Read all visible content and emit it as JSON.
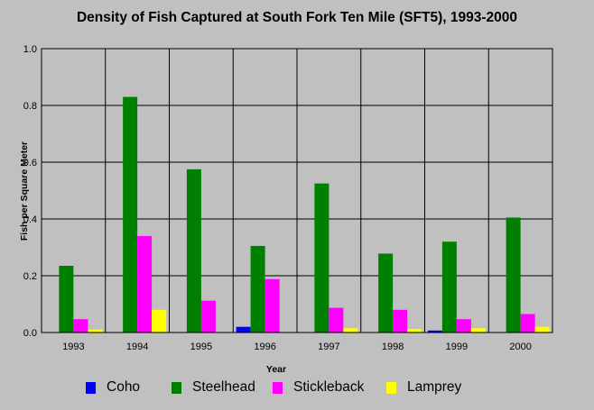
{
  "chart_data": {
    "type": "bar",
    "title": "Density of Fish Captured at South Fork Ten Mile (SFT5), 1993-2000",
    "xlabel": "Year",
    "ylabel": "Fish per Square Meter",
    "ylim": [
      0,
      1.0
    ],
    "yticks": [
      "0.0",
      "0.2",
      "0.4",
      "0.6",
      "0.8",
      "1.0"
    ],
    "grid": true,
    "legend_position": "bottom",
    "categories": [
      "1993",
      "1994",
      "1995",
      "1996",
      "1997",
      "1998",
      "1999",
      "2000"
    ],
    "series": [
      {
        "name": "Coho",
        "color": "#0000ff",
        "values": [
          0,
          0,
          0,
          0.02,
          0,
          0,
          0.007,
          0
        ]
      },
      {
        "name": "Steelhead",
        "color": "#008000",
        "values": [
          0.235,
          0.83,
          0.575,
          0.305,
          0.525,
          0.278,
          0.32,
          0.405
        ]
      },
      {
        "name": "Stickleback",
        "color": "#ff00ff",
        "values": [
          0.047,
          0.34,
          0.112,
          0.188,
          0.087,
          0.08,
          0.047,
          0.065
        ]
      },
      {
        "name": "Lamprey",
        "color": "#ffff00",
        "values": [
          0.01,
          0.08,
          0,
          0,
          0.015,
          0.013,
          0.015,
          0.02
        ]
      }
    ]
  }
}
